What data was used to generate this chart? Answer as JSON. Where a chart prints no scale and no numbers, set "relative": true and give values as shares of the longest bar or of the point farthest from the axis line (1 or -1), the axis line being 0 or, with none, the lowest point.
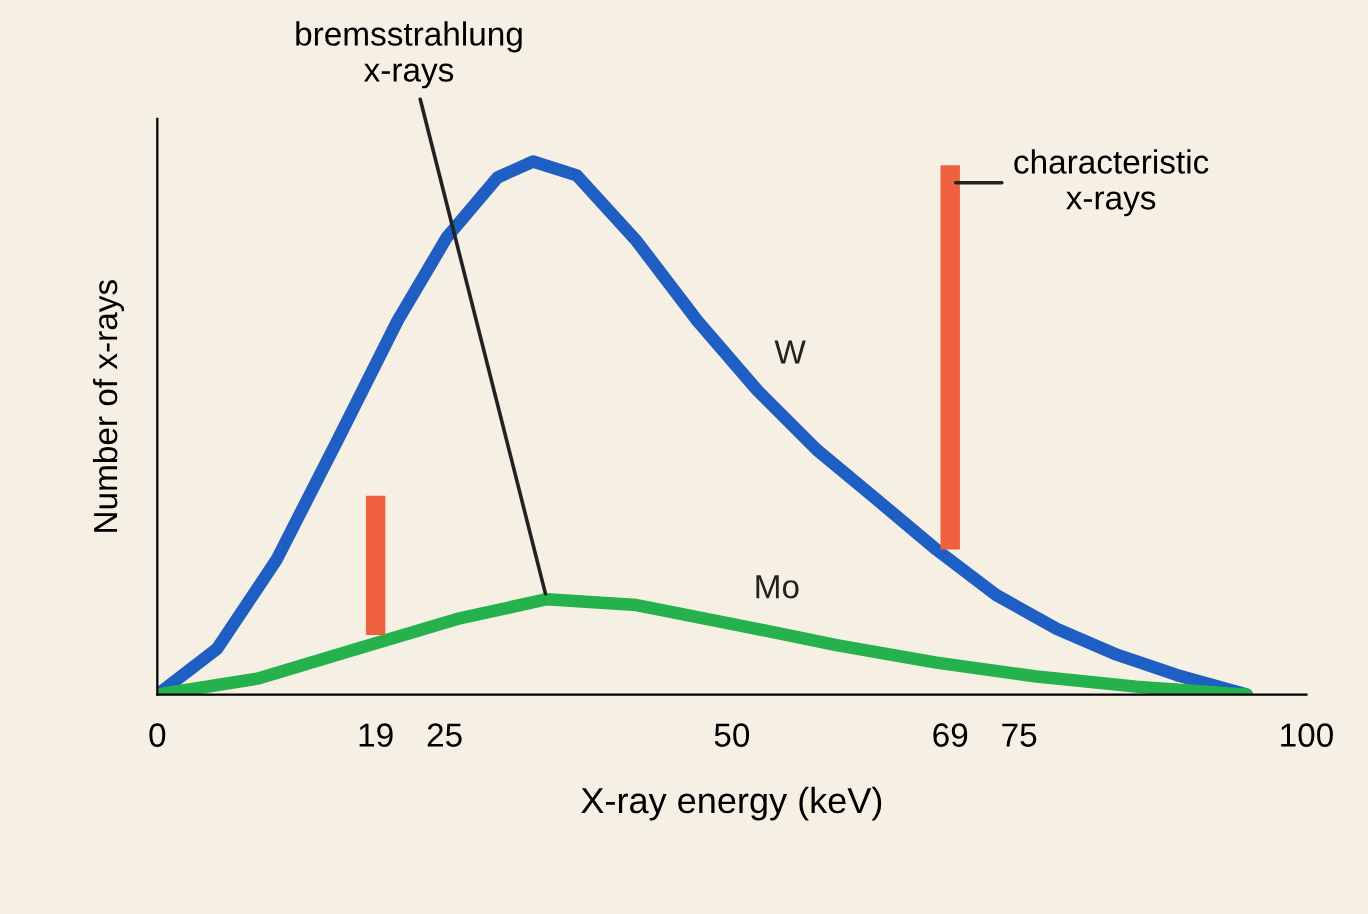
{
  "chart_data": {
    "type": "line",
    "relative": true,
    "xlabel": "X-ray energy (keV)",
    "ylabel": "Number of x-rays",
    "xlim": [
      0,
      100
    ],
    "xticks": [
      0,
      19,
      25,
      50,
      69,
      75,
      100
    ],
    "grid": false,
    "legend": false,
    "marker": "none",
    "line_style": "solid",
    "series": [
      {
        "name": "W",
        "color": "#1f5fc4",
        "x": [
          0,
          5.2,
          10.4,
          15.7,
          20.9,
          25.2,
          29.6,
          32.7,
          36.5,
          41.7,
          47,
          52.2,
          57.4,
          62.6,
          67.8,
          73,
          78.3,
          83.5,
          88.7,
          94.8
        ],
        "values": [
          0,
          0.086,
          0.254,
          0.478,
          0.701,
          0.858,
          0.97,
          1,
          0.974,
          0.851,
          0.701,
          0.571,
          0.459,
          0.366,
          0.272,
          0.187,
          0.123,
          0.075,
          0.037,
          0
        ]
      },
      {
        "name": "Mo",
        "color": "#25b14b",
        "x": [
          0,
          8.7,
          17.4,
          26.1,
          33.9,
          41.7,
          50.4,
          59.1,
          67.8,
          76.5,
          85.2,
          94.8
        ],
        "values": [
          0,
          0.03,
          0.086,
          0.142,
          0.179,
          0.168,
          0.131,
          0.093,
          0.06,
          0.034,
          0.015,
          0
        ]
      },
      {
        "color": "#ef6040",
        "x": [
          19,
          19
        ],
        "values": [
          0.112,
          0.373
        ]
      },
      {
        "color": "#ef6040",
        "x": [
          69,
          69
        ],
        "values": [
          0.272,
          0.993
        ]
      }
    ],
    "annotations": [
      {
        "text": "bremsstrahlung\nx-rays",
        "x": 33.9,
        "y": 0.179
      },
      {
        "text": "characteristic\nx-rays",
        "x": 69,
        "y": 0.96
      }
    ]
  }
}
